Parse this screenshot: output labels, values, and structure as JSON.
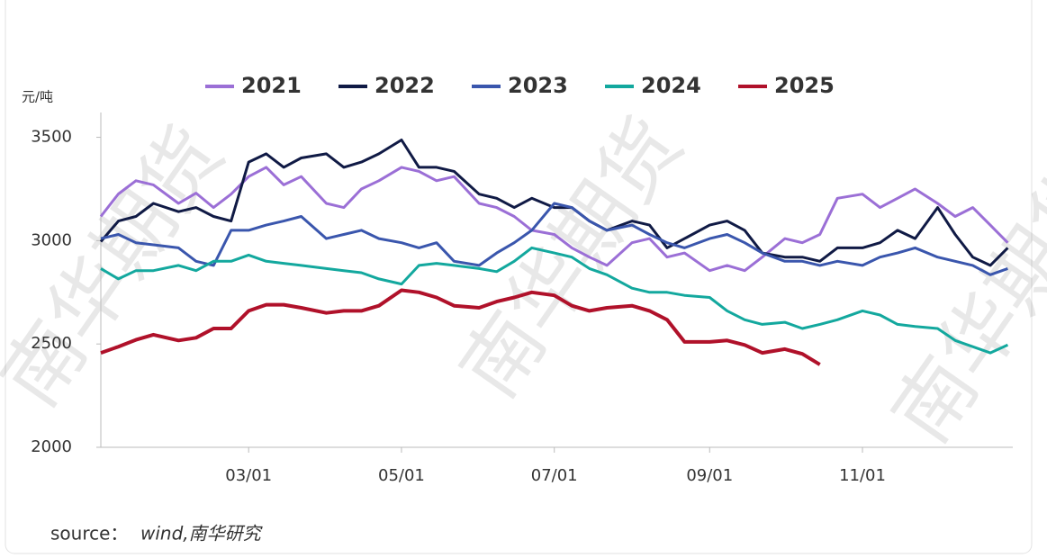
{
  "chart_data": {
    "type": "line",
    "unit_label": "元/吨",
    "watermark": "南华期货",
    "source_label": "source：",
    "source": "wind,南华研究",
    "x": [
      "01/01",
      "01/08",
      "01/15",
      "01/22",
      "02/01",
      "02/08",
      "02/15",
      "02/22",
      "03/01",
      "03/08",
      "03/15",
      "03/22",
      "04/01",
      "04/08",
      "04/15",
      "04/22",
      "05/01",
      "05/08",
      "05/15",
      "05/22",
      "06/01",
      "06/08",
      "06/15",
      "06/22",
      "07/01",
      "07/08",
      "07/15",
      "07/22",
      "08/01",
      "08/08",
      "08/15",
      "08/22",
      "09/01",
      "09/08",
      "09/15",
      "09/22",
      "10/01",
      "10/08",
      "10/15",
      "10/22",
      "11/01",
      "11/08",
      "11/15",
      "11/22",
      "12/01",
      "12/08",
      "12/15",
      "12/22",
      "12/29"
    ],
    "xlim": [
      "01/01",
      "12/31"
    ],
    "xticks": [
      "03/01",
      "05/01",
      "07/01",
      "09/01",
      "11/01"
    ],
    "ylim": [
      2000,
      3620
    ],
    "yticks": [
      2000,
      2500,
      3000,
      3500
    ],
    "grid": false,
    "legend": "top",
    "series": [
      {
        "name": "2021",
        "color": "#9b6fd6",
        "values": [
          3117,
          3226,
          3290,
          3270,
          3180,
          3230,
          3160,
          3225,
          3310,
          3355,
          3270,
          3310,
          3180,
          3160,
          3250,
          3290,
          3355,
          3335,
          3290,
          3310,
          3180,
          3160,
          3117,
          3050,
          3030,
          2965,
          2920,
          2880,
          2990,
          3010,
          2920,
          2940,
          2855,
          2880,
          2855,
          2920,
          3010,
          2990,
          3030,
          3205,
          3225,
          3160,
          3205,
          3250,
          3180,
          3117,
          3160,
          3075,
          2990
        ]
      },
      {
        "name": "2022",
        "color": "#101a45",
        "values": [
          2995,
          3095,
          3117,
          3180,
          3140,
          3160,
          3117,
          3095,
          3380,
          3420,
          3355,
          3400,
          3420,
          3355,
          3380,
          3420,
          3487,
          3355,
          3355,
          3335,
          3225,
          3205,
          3160,
          3205,
          3160,
          3160,
          3095,
          3050,
          3095,
          3075,
          2965,
          3010,
          3075,
          3095,
          3050,
          2940,
          2920,
          2920,
          2900,
          2965,
          2965,
          2990,
          3050,
          3010,
          3160,
          3030,
          2920,
          2880,
          2965
        ]
      },
      {
        "name": "2023",
        "color": "#3a56ad",
        "values": [
          3010,
          3030,
          2990,
          2980,
          2965,
          2900,
          2880,
          3050,
          3050,
          3075,
          3095,
          3117,
          3010,
          3030,
          3050,
          3010,
          2990,
          2965,
          2990,
          2900,
          2880,
          2940,
          2990,
          3050,
          3180,
          3160,
          3095,
          3050,
          3075,
          3030,
          2990,
          2965,
          3010,
          3030,
          2990,
          2940,
          2900,
          2900,
          2880,
          2900,
          2880,
          2920,
          2940,
          2965,
          2920,
          2900,
          2880,
          2835,
          2865
        ]
      },
      {
        "name": "2024",
        "color": "#13a89e",
        "values": [
          2865,
          2815,
          2855,
          2855,
          2880,
          2855,
          2900,
          2900,
          2930,
          2900,
          2890,
          2880,
          2865,
          2855,
          2845,
          2815,
          2790,
          2880,
          2890,
          2880,
          2865,
          2850,
          2900,
          2965,
          2940,
          2920,
          2865,
          2835,
          2770,
          2750,
          2750,
          2735,
          2725,
          2660,
          2617,
          2595,
          2605,
          2575,
          2595,
          2617,
          2660,
          2640,
          2595,
          2585,
          2575,
          2517,
          2487,
          2457,
          2495
        ]
      },
      {
        "name": "2025",
        "color": "#b0112a",
        "values": [
          2457,
          2487,
          2520,
          2545,
          2517,
          2530,
          2575,
          2575,
          2660,
          2690,
          2690,
          2675,
          2650,
          2660,
          2660,
          2685,
          2760,
          2750,
          2725,
          2685,
          2675,
          2705,
          2725,
          2750,
          2735,
          2685,
          2660,
          2675,
          2685,
          2660,
          2617,
          2510,
          2510,
          2517,
          2495,
          2457,
          2475,
          2452,
          2400,
          null,
          null,
          null,
          null,
          null,
          null,
          null,
          null,
          null,
          null
        ]
      }
    ]
  }
}
